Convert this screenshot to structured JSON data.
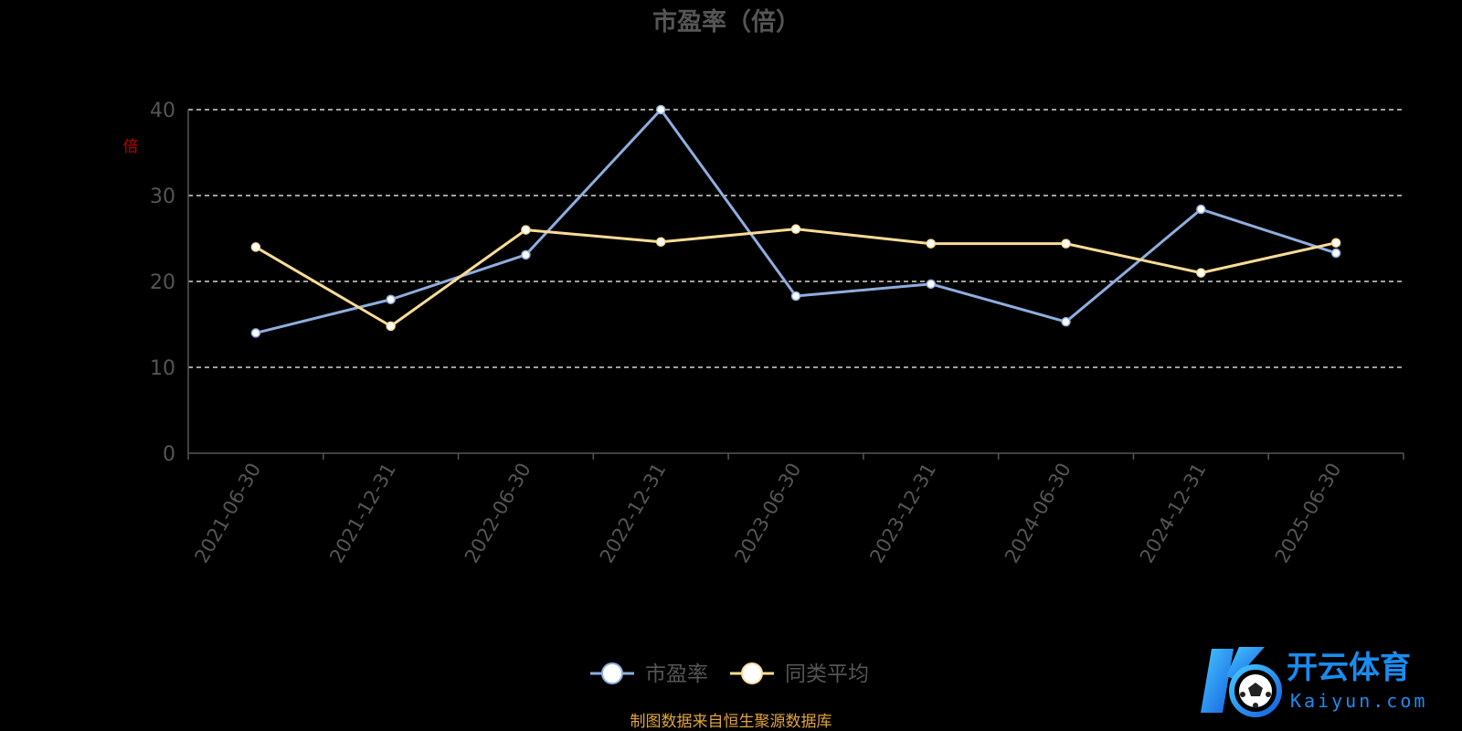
{
  "chart_data": {
    "type": "line",
    "title": "市盈率（倍）",
    "ylabel": "倍",
    "categories": [
      "2021-06-30",
      "2021-12-31",
      "2022-06-30",
      "2022-12-31",
      "2023-06-30",
      "2023-12-31",
      "2024-06-30",
      "2024-12-31",
      "2025-06-30"
    ],
    "series": [
      {
        "name": "市盈率",
        "color": "#8fadde",
        "values": [
          14.0,
          17.9,
          23.1,
          40.0,
          18.3,
          19.7,
          15.3,
          28.4,
          23.3
        ]
      },
      {
        "name": "同类平均",
        "color": "#fbdc96",
        "values": [
          24.0,
          14.8,
          26.0,
          24.6,
          26.1,
          24.4,
          24.4,
          21.0,
          24.5
        ]
      }
    ],
    "ylim": [
      0,
      40
    ],
    "yticks": [
      0,
      10,
      20,
      30,
      40
    ],
    "grid": true,
    "legend_position": "bottom-center"
  },
  "source_note": "制图数据来自恒生聚源数据库",
  "watermark": {
    "brand_cn": "开云体育",
    "brand_en": "Kaiyun.com"
  },
  "colors": {
    "background": "#000000",
    "title": "#555555",
    "axis_text": "#555555",
    "ylabel": "#c00000",
    "grid": "#ffffff",
    "source_note": "#e0a43c",
    "brand_blue": "#1a8cf0"
  }
}
